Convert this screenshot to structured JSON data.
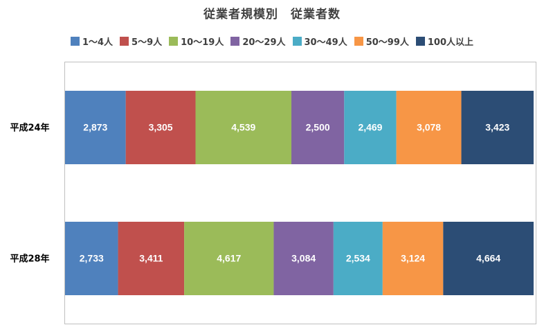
{
  "chart_data": {
    "type": "bar",
    "orientation": "horizontal",
    "stacked": "percent",
    "title": "従業者規模別　従業者数",
    "categories": [
      "平成24年",
      "平成28年"
    ],
    "series": [
      {
        "name": "1～4人",
        "color": "#4f81bd",
        "values": [
          2873,
          2733
        ]
      },
      {
        "name": "5～9人",
        "color": "#c0504d",
        "values": [
          3305,
          3411
        ]
      },
      {
        "name": "10～19人",
        "color": "#9bbb59",
        "values": [
          4539,
          4617
        ]
      },
      {
        "name": "20～29人",
        "color": "#8064a2",
        "values": [
          2500,
          3084
        ]
      },
      {
        "name": "30～49人",
        "color": "#4bacc6",
        "values": [
          2469,
          2534
        ]
      },
      {
        "name": "50～99人",
        "color": "#f79646",
        "values": [
          3078,
          3124
        ]
      },
      {
        "name": "100人以上",
        "color": "#2c4d75",
        "values": [
          3423,
          4664
        ]
      }
    ],
    "legend": "top",
    "grid": false
  }
}
